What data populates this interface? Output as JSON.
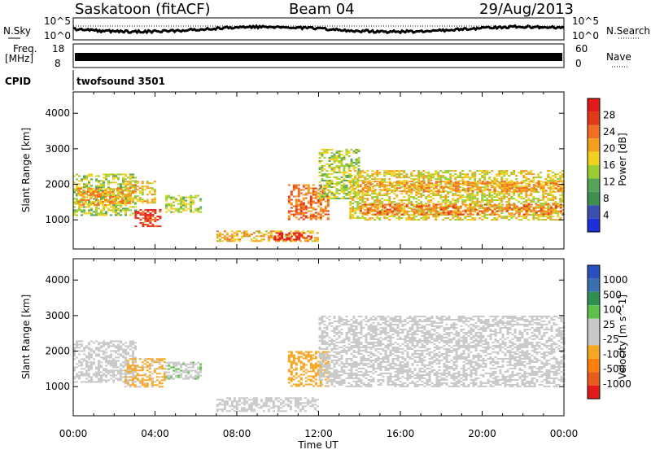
{
  "header": {
    "station": "Saskatoon (fitACF)",
    "beam": "Beam 04",
    "date": "29/Aug/2013"
  },
  "noise_panel": {
    "left_label": "N.Sky",
    "right_label": "N.Search",
    "left_ticks": [
      "10^5",
      "10^0"
    ],
    "right_ticks": [
      "10^5",
      "10^0"
    ]
  },
  "freq_panel": {
    "left_label_line1": "Freq.",
    "left_label_line2": "[MHz]",
    "right_label": "Nave",
    "left_ticks": [
      "18",
      "8"
    ],
    "right_ticks": [
      "60",
      "0"
    ]
  },
  "cpid_panel": {
    "label": "CPID",
    "program": "twofsound 3501"
  },
  "colors": {
    "power_scale": [
      "#1f2fd8",
      "#3a4fb0",
      "#3f8f4f",
      "#56a45a",
      "#9acd32",
      "#f0d020",
      "#f59d1e",
      "#f26e22",
      "#e03a18",
      "#e11a1a"
    ],
    "velocity_scale": [
      "#2a4fc0",
      "#3a6fb0",
      "#2f8f4f",
      "#5cc04a",
      "#c8c8c8",
      "#c8c8c8",
      "#f5a623",
      "#ff7f0e",
      "#e85d1c",
      "#e11a1a"
    ]
  },
  "chart_data": [
    {
      "type": "heatmap",
      "title": "",
      "xlabel": "",
      "ylabel": "Slant Range [km]",
      "x_ticks": [
        "00:00",
        "04:00",
        "08:00",
        "12:00",
        "16:00",
        "20:00",
        "00:00"
      ],
      "y_ticks": [
        "1000",
        "2000",
        "3000",
        "4000"
      ],
      "xlim": [
        0,
        24
      ],
      "ylim": [
        180,
        4600
      ],
      "colorbar": {
        "label": "Power [dB]",
        "ticks": [
          "4",
          "8",
          "12",
          "16",
          "20",
          "24",
          "28"
        ],
        "range": [
          0,
          30
        ]
      },
      "regions": [
        {
          "t0": 0.0,
          "t1": 3.0,
          "r0": 1150,
          "r1": 2300,
          "value": 14
        },
        {
          "t0": 0.2,
          "t1": 2.8,
          "r0": 1400,
          "r1": 1900,
          "value": 20
        },
        {
          "t0": 3.0,
          "t1": 4.2,
          "r0": 800,
          "r1": 1300,
          "value": 26
        },
        {
          "t0": 2.5,
          "t1": 4.0,
          "r0": 1500,
          "r1": 2100,
          "value": 18
        },
        {
          "t0": 4.5,
          "t1": 6.2,
          "r0": 1200,
          "r1": 1700,
          "value": 14
        },
        {
          "t0": 7.0,
          "t1": 12.0,
          "r0": 400,
          "r1": 700,
          "value": 18
        },
        {
          "t0": 9.8,
          "t1": 11.6,
          "r0": 450,
          "r1": 650,
          "value": 28
        },
        {
          "t0": 10.5,
          "t1": 12.5,
          "r0": 1000,
          "r1": 2000,
          "value": 22
        },
        {
          "t0": 12.0,
          "t1": 14.0,
          "r0": 1600,
          "r1": 3000,
          "value": 14
        },
        {
          "t0": 13.5,
          "t1": 24.0,
          "r0": 1000,
          "r1": 2400,
          "value": 16
        },
        {
          "t0": 14.0,
          "t1": 24.0,
          "r0": 1150,
          "r1": 1450,
          "value": 22
        },
        {
          "t0": 14.0,
          "t1": 24.0,
          "r0": 1800,
          "r1": 2100,
          "value": 20
        }
      ]
    },
    {
      "type": "heatmap",
      "title": "",
      "xlabel": "Time UT",
      "ylabel": "Slant Range [km]",
      "x_ticks": [
        "00:00",
        "04:00",
        "08:00",
        "12:00",
        "16:00",
        "20:00",
        "00:00"
      ],
      "y_ticks": [
        "1000",
        "2000",
        "3000",
        "4000"
      ],
      "xlim": [
        0,
        24
      ],
      "ylim": [
        180,
        4600
      ],
      "colorbar": {
        "label": "Velocity [m s^-1]",
        "ticks": [
          "1000",
          "500",
          "100",
          "25",
          "-25",
          "-100",
          "-500",
          "-1000"
        ],
        "range": [
          -1000,
          1000
        ]
      },
      "regions": [
        {
          "t0": 0.0,
          "t1": 3.0,
          "r0": 1150,
          "r1": 2300,
          "value": 0
        },
        {
          "t0": 2.5,
          "t1": 4.5,
          "r0": 1000,
          "r1": 1800,
          "value": -250
        },
        {
          "t0": 4.5,
          "t1": 6.2,
          "r0": 1200,
          "r1": 1700,
          "value": 150
        },
        {
          "t0": 7.0,
          "t1": 12.0,
          "r0": 300,
          "r1": 700,
          "value": -50
        },
        {
          "t0": 10.5,
          "t1": 12.5,
          "r0": 1000,
          "r1": 2000,
          "value": -300
        },
        {
          "t0": 12.0,
          "t1": 24.0,
          "r0": 1000,
          "r1": 3000,
          "value": 0
        }
      ]
    }
  ]
}
